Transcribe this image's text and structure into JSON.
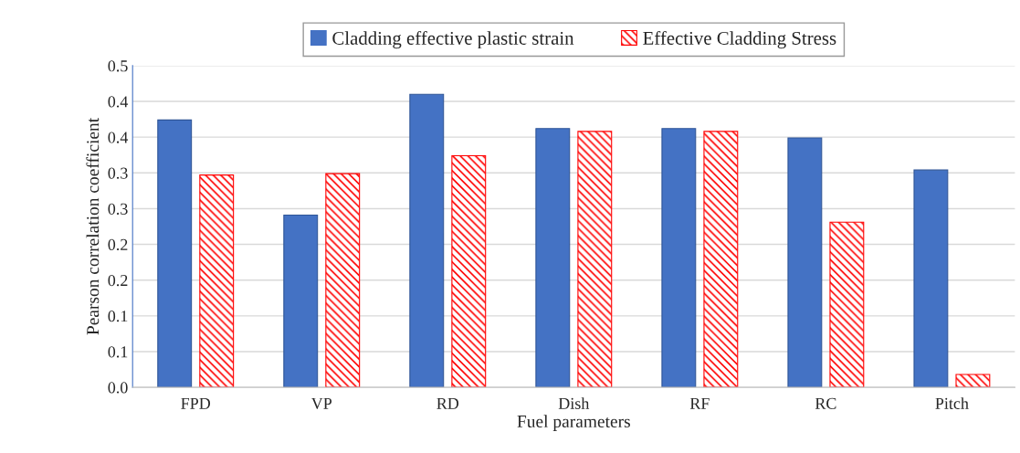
{
  "chart_data": {
    "type": "bar",
    "xlabel": "Fuel parameters",
    "ylabel": "Pearson correlation coefficient",
    "categories": [
      "FPD",
      "VP",
      "RD",
      "Dish",
      "RF",
      "RC",
      "Pitch"
    ],
    "series": [
      {
        "name": "Cladding effective plastic strain",
        "color": "#4472c4",
        "values": [
          0.374,
          0.241,
          0.41,
          0.362,
          0.362,
          0.349,
          0.304
        ]
      },
      {
        "name": "Effective Cladding Stress",
        "color": "#ff0000",
        "values": [
          0.297,
          0.299,
          0.324,
          0.358,
          0.358,
          0.231,
          0.018
        ]
      }
    ],
    "ylim": [
      0,
      0.45
    ],
    "yticks": [
      {
        "value": 0,
        "label": "0.0"
      },
      {
        "value": 0.05,
        "label": "0.1"
      },
      {
        "value": 0.1,
        "label": "0.1"
      },
      {
        "value": 0.15,
        "label": "0.2"
      },
      {
        "value": 0.2,
        "label": "0.2"
      },
      {
        "value": 0.25,
        "label": "0.3"
      },
      {
        "value": 0.3,
        "label": "0.3"
      },
      {
        "value": 0.35,
        "label": "0.4"
      },
      {
        "value": 0.4,
        "label": "0.4"
      },
      {
        "value": 0.45,
        "label": "0.5"
      }
    ],
    "grid": "y",
    "legend": "top"
  }
}
